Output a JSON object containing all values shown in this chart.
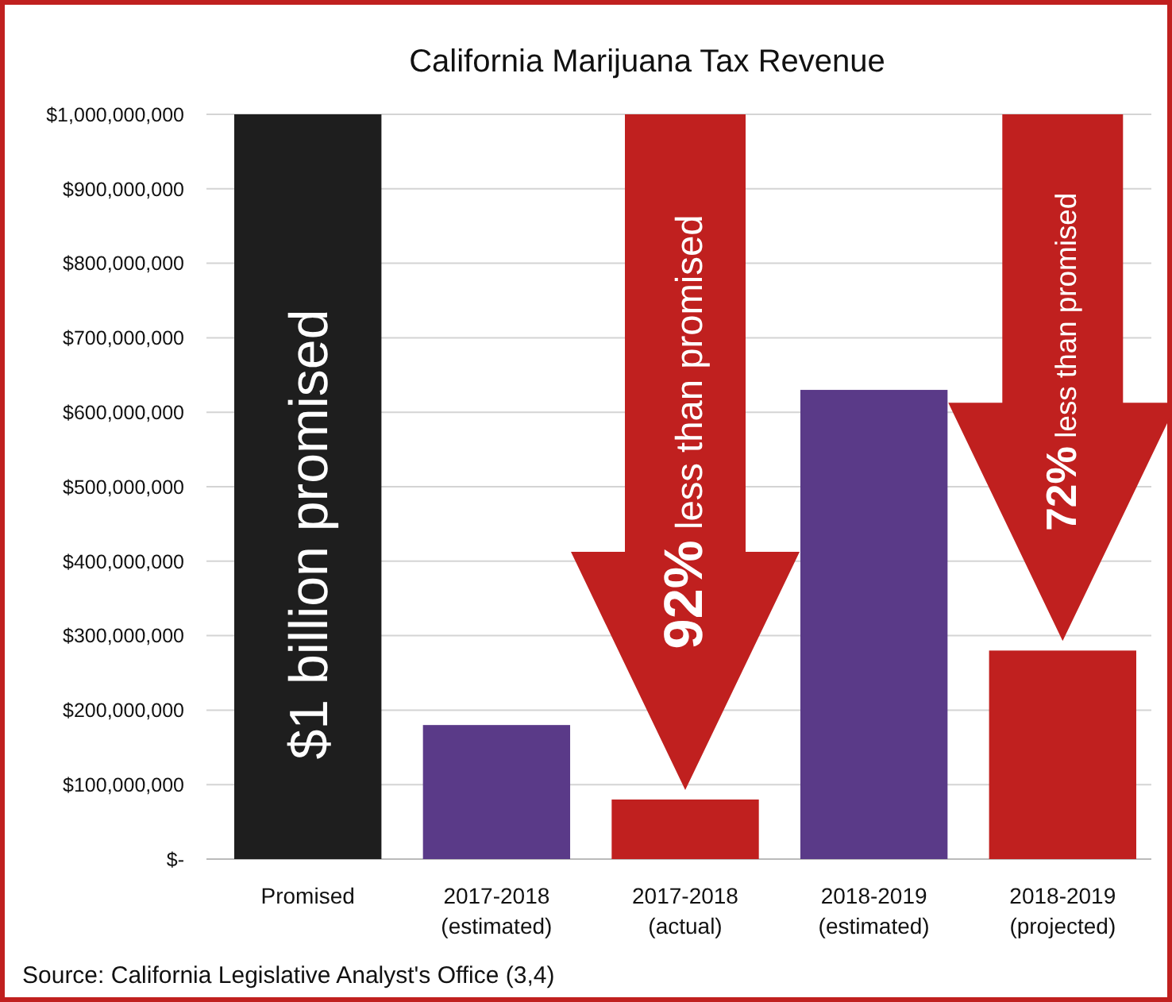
{
  "chart_data": {
    "type": "bar",
    "title": "California Marijuana Tax Revenue",
    "categories": [
      "Promised",
      "2017-2018 (estimated)",
      "2017-2018 (actual)",
      "2018-2019 (estimated)",
      "2018-2019 (projected)"
    ],
    "values": [
      1000000000,
      180000000,
      80000000,
      630000000,
      280000000
    ],
    "colors": [
      "#1e1e1e",
      "#5a3a88",
      "#c0201f",
      "#5a3a88",
      "#c0201f"
    ],
    "ylim": [
      0,
      1000000000
    ],
    "yticks": [
      {
        "value": 0,
        "label": "$-"
      },
      {
        "value": 100000000,
        "label": "$100,000,000"
      },
      {
        "value": 200000000,
        "label": "$200,000,000"
      },
      {
        "value": 300000000,
        "label": "$300,000,000"
      },
      {
        "value": 400000000,
        "label": "$400,000,000"
      },
      {
        "value": 500000000,
        "label": "$500,000,000"
      },
      {
        "value": 600000000,
        "label": "$600,000,000"
      },
      {
        "value": 700000000,
        "label": "$700,000,000"
      },
      {
        "value": 800000000,
        "label": "$800,000,000"
      },
      {
        "value": 900000000,
        "label": "$900,000,000"
      },
      {
        "value": 1000000000,
        "label": "$1,000,000,000"
      }
    ],
    "grid": "y",
    "annotations": [
      "$1 billion promised",
      {
        "text": "92% less than promised",
        "x": "2017-2018 (actual)",
        "y": 80000000
      },
      {
        "text": "72% less than promised",
        "x": "2018-2019 (projected)",
        "y": 280000000
      },
      "Source:  California Legislative Analyst's Office (3,4)"
    ]
  }
}
